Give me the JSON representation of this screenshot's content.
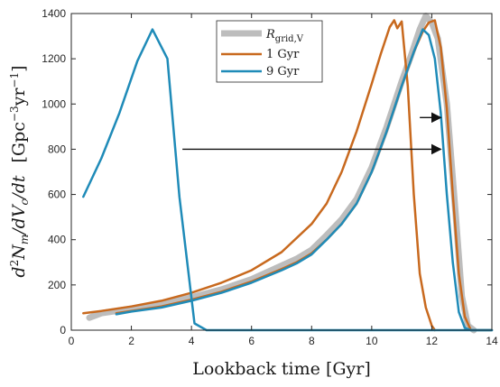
{
  "chart_data": {
    "type": "line",
    "xlabel": "Lookback time   [Gyr]",
    "ylabel": "d²Nₘ/dV_c/dt   [Gpc⁻³yr⁻¹]",
    "ylabel_parts": {
      "d": "d",
      "sup2": "2",
      "N": "N",
      "subm": "m",
      "slashdV": "/dV",
      "subc": "c",
      "slashdt": "/dt",
      "unit_open": "[Gpc",
      "exp1": "−3",
      "yr": "yr",
      "exp2": "−1",
      "unit_close": "]"
    },
    "xlim": [
      0,
      14
    ],
    "ylim": [
      0,
      1400
    ],
    "xticks": [
      0,
      2,
      4,
      6,
      8,
      10,
      12,
      14
    ],
    "yticks": [
      0,
      200,
      400,
      600,
      800,
      1000,
      1200,
      1400
    ],
    "xtick_labels": [
      "0",
      "2",
      "4",
      "6",
      "8",
      "10",
      "12",
      "14"
    ],
    "ytick_labels": [
      "0",
      "200",
      "400",
      "600",
      "800",
      "1000",
      "1200",
      "1400"
    ],
    "legend_position": "top-center",
    "grid": false,
    "series": [
      {
        "name": "R_grid,V",
        "legend_main": "R",
        "legend_sub": "grid,V",
        "color": "#bdbdbd",
        "x": [
          0.6,
          1,
          2,
          3,
          4,
          5,
          6,
          7,
          7.5,
          8,
          8.5,
          9,
          9.5,
          10,
          10.5,
          11,
          11.3,
          11.6,
          11.8,
          12.0,
          12.2,
          12.5,
          12.8,
          13.0,
          13.2,
          13.4
        ],
        "y": [
          55,
          75,
          95,
          115,
          145,
          180,
          225,
          285,
          315,
          355,
          420,
          490,
          580,
          720,
          900,
          1100,
          1210,
          1330,
          1390,
          1360,
          1290,
          1000,
          500,
          150,
          20,
          0
        ]
      },
      {
        "name": "1 Gyr",
        "color": "#c8691e",
        "x": [
          0.4,
          1,
          2,
          3,
          4,
          5,
          6,
          7,
          8,
          8.5,
          9,
          9.5,
          10,
          10.3,
          10.6,
          10.75,
          10.85,
          11.0,
          11.2,
          11.4,
          11.6,
          11.8,
          12.0,
          12.1
        ],
        "y": [
          75,
          85,
          105,
          130,
          165,
          210,
          265,
          345,
          470,
          560,
          700,
          880,
          1090,
          1220,
          1340,
          1370,
          1335,
          1365,
          1080,
          600,
          250,
          100,
          20,
          0
        ]
      },
      {
        "name": "1 Gyr",
        "color": "#c8691e",
        "x": [
          1.5,
          2,
          3,
          4,
          5,
          6,
          7,
          7.5,
          8,
          8.5,
          9,
          9.5,
          10,
          10.5,
          11,
          11.4,
          11.7,
          11.9,
          12.1,
          12.3,
          12.5,
          12.7,
          12.9,
          13.1,
          13.3,
          14.0
        ],
        "y": [
          75,
          85,
          105,
          135,
          170,
          215,
          270,
          300,
          340,
          400,
          470,
          560,
          700,
          880,
          1080,
          1230,
          1320,
          1360,
          1370,
          1250,
          980,
          600,
          250,
          60,
          0,
          0
        ]
      },
      {
        "name": "9 Gyr",
        "color": "#1f8bb8",
        "x": [
          0.4,
          1.0,
          1.6,
          2.2,
          2.7,
          3.2,
          3.6,
          4.1,
          4.5,
          14.0
        ],
        "y": [
          590,
          760,
          960,
          1190,
          1330,
          1200,
          590,
          30,
          0,
          0
        ]
      },
      {
        "name": "9 Gyr",
        "color": "#1f8bb8",
        "x": [
          1.5,
          2,
          3,
          4,
          5,
          6,
          7,
          7.5,
          8,
          8.5,
          9,
          9.5,
          10,
          10.5,
          11,
          11.4,
          11.7,
          11.9,
          12.1,
          12.3,
          12.5,
          12.7,
          12.9,
          13.1,
          13.3,
          14.0
        ],
        "y": [
          70,
          82,
          100,
          130,
          165,
          210,
          265,
          295,
          335,
          400,
          470,
          560,
          700,
          880,
          1080,
          1230,
          1330,
          1305,
          1200,
          960,
          600,
          300,
          80,
          10,
          0,
          0
        ]
      }
    ],
    "annotations": [
      {
        "type": "arrow",
        "x1": 3.7,
        "y1": 800,
        "x2": 12.3,
        "y2": 800
      },
      {
        "type": "arrow",
        "x1": 11.6,
        "y1": 940,
        "x2": 12.3,
        "y2": 940
      }
    ]
  }
}
